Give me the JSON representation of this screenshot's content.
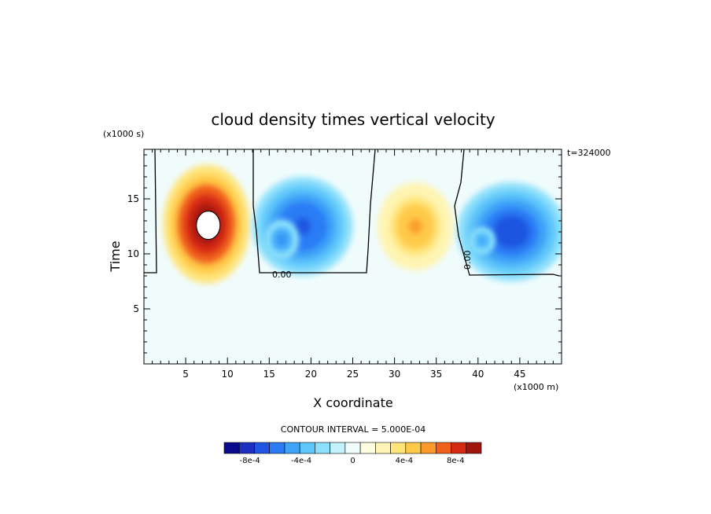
{
  "chart_data": {
    "type": "heatmap",
    "title": "cloud density times vertical velocity",
    "xlabel": "X coordinate",
    "ylabel": "Time",
    "x_scale_note": "(x1000 m)",
    "y_scale_note": "(x1000 s)",
    "time_stamp": "t=324000",
    "xlim": [
      0,
      50
    ],
    "ylim": [
      0,
      19.5
    ],
    "x_ticks": [
      5,
      10,
      15,
      20,
      25,
      30,
      35,
      40,
      45
    ],
    "y_ticks": [
      5,
      10,
      15
    ],
    "contour_interval_text": "CONTOUR INTERVAL = 5.000E-04",
    "zero_contour_labels": [
      "0.00",
      "0.00"
    ],
    "background_value": 0,
    "cells": [
      {
        "x": 7.5,
        "y": 12.7,
        "value": 0.0011,
        "rx": 5.2,
        "ry": 5.4
      },
      {
        "x": 19.0,
        "y": 12.5,
        "value": -0.00075,
        "rx": 6.0,
        "ry": 4.5
      },
      {
        "x": 16.5,
        "y": 11.3,
        "value": -0.0006,
        "rx": 2.0,
        "ry": 1.8
      },
      {
        "x": 32.5,
        "y": 12.5,
        "value": 0.0006,
        "rx": 4.5,
        "ry": 4.0
      },
      {
        "x": 44.0,
        "y": 12.0,
        "value": -0.0008,
        "rx": 6.5,
        "ry": 4.5
      },
      {
        "x": 40.5,
        "y": 11.2,
        "value": -0.0005,
        "rx": 1.5,
        "ry": 1.2
      }
    ],
    "colorbar": {
      "levels": [
        -0.001,
        -0.00087,
        -0.00075,
        -0.00062,
        -0.0005,
        -0.00037,
        -0.00025,
        -0.00012,
        0,
        0.00012,
        0.00025,
        0.00037,
        0.0005,
        0.00062,
        0.00075,
        0.00087,
        0.001
      ],
      "colors": [
        "#0a0a8c",
        "#1d2fbf",
        "#1f55e0",
        "#2c7df5",
        "#3fa3f7",
        "#5fc6fa",
        "#8de0fb",
        "#c3f1fc",
        "#f0fcfc",
        "#fffde0",
        "#fff4b3",
        "#ffe47a",
        "#ffc94a",
        "#fb9a2a",
        "#f0601c",
        "#d42a12",
        "#a0140c"
      ],
      "tick_labels": [
        "-8e-4",
        "-4e-4",
        "0",
        "4e-4",
        "8e-4"
      ]
    }
  }
}
